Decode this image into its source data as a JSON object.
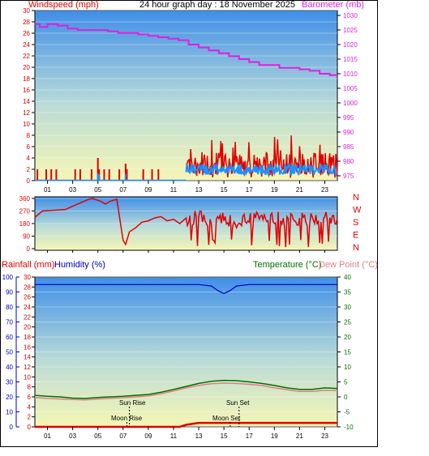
{
  "header": {
    "windspeed_label": "Windspeed (mph)",
    "title": "24 hour graph day : 18 November 2025",
    "barometer_label": "Barometer (mb)"
  },
  "lower_header": {
    "rainfall_label": "Rainfall (mm)",
    "humidity_label": "Humidity (%)",
    "temperature_label": "Temperature (°C)",
    "dewpoint_label": "Dew Point (°C)"
  },
  "annotations": {
    "sun_rise": "Sun Rise",
    "sun_set": "Sun Set",
    "moon_rise": "Moon Rise",
    "moon_set": "Moon Set"
  },
  "colors": {
    "wind": "#e00000",
    "gust_avg": "#1e90ff",
    "barometer": "#e020e0",
    "humidity": "#0000c0",
    "temperature": "#007000",
    "dewpoint": "#e08080",
    "rain": "#e00000",
    "sky_top": "#3f8fe8",
    "sky_bottom": "#f6f6b4"
  },
  "chart_data": [
    {
      "type": "line",
      "name": "wind-barometer",
      "x_ticks": [
        "01",
        "03",
        "05",
        "07",
        "09",
        "11",
        "13",
        "15",
        "17",
        "19",
        "21",
        "23"
      ],
      "left_axis": {
        "label": "Windspeed (mph)",
        "ticks": [
          0,
          2,
          4,
          6,
          8,
          10,
          12,
          14,
          16,
          18,
          20,
          22,
          24,
          26,
          28,
          30
        ],
        "ylim": [
          0,
          30
        ]
      },
      "right_axis": {
        "label": "Barometer (mb)",
        "ticks": [
          975,
          980,
          985,
          990,
          995,
          1000,
          1005,
          1010,
          1015,
          1020,
          1025,
          1030
        ],
        "ylim": [
          975,
          1030
        ]
      },
      "barometer": {
        "x": [
          0,
          0.4,
          1,
          1.8,
          2.6,
          3.4,
          4.2,
          5,
          5.8,
          6.6,
          7.4,
          8.2,
          9,
          9.8,
          10.6,
          11.4,
          12.2,
          13,
          13.8,
          14.6,
          15.4,
          16.2,
          17,
          17.8,
          18.6,
          19.4,
          20.2,
          21,
          21.8,
          22.6,
          23.4,
          24
        ],
        "y": [
          1027,
          1026,
          1027,
          1026.5,
          1025.5,
          1025,
          1025,
          1025,
          1024.5,
          1024,
          1024,
          1023.5,
          1023,
          1022.5,
          1022,
          1021.5,
          1020,
          1019,
          1018,
          1017,
          1016,
          1015,
          1014,
          1013,
          1013,
          1012,
          1012,
          1011.5,
          1011,
          1010,
          1009.5,
          1009.5
        ]
      },
      "wind_peaks": {
        "x": [
          0.2,
          0.9,
          1.3,
          1.7,
          3.2,
          3.6,
          4.5,
          5.0,
          5.1,
          5.5,
          5.9,
          6.7,
          7.2,
          7.3,
          8.6,
          9.3,
          9.8
        ],
        "y": [
          2,
          2,
          2,
          2,
          2,
          2,
          2,
          4,
          2,
          2,
          2,
          2,
          3,
          2,
          2,
          2,
          2
        ]
      },
      "active_wind": {
        "x_start": 12,
        "x_end": 24,
        "typical_max_mph": 5,
        "peak_mph": 8,
        "avg_band_mph": [
          1,
          3
        ]
      }
    },
    {
      "type": "line",
      "name": "wind-direction",
      "y_ticks": [
        0,
        90,
        180,
        270,
        360
      ],
      "compass_labels": [
        "N",
        "W",
        "S",
        "E",
        "N"
      ],
      "x": [
        0,
        0.6,
        1.4,
        2.4,
        3.4,
        4.3,
        4.6,
        5.2,
        5.6,
        6.0,
        6.5,
        7.0,
        7.2,
        7.5,
        8.0,
        8.5,
        9.0,
        9.5,
        10.0,
        10.5,
        11.0,
        11.5,
        12.0,
        12.5,
        13.0,
        13.5,
        14.0,
        14.5,
        15.0,
        15.5,
        16.0,
        16.5,
        17.0,
        17.5,
        18.0,
        18.5,
        19.0,
        19.5,
        20.0,
        20.5,
        21.0,
        21.5,
        22.0,
        22.5,
        23.0,
        23.5,
        24.0
      ],
      "y": [
        225,
        270,
        275,
        280,
        320,
        355,
        360,
        340,
        320,
        340,
        355,
        60,
        30,
        120,
        150,
        190,
        200,
        220,
        230,
        200,
        210,
        180,
        220,
        170,
        230,
        200,
        180,
        230,
        200,
        240,
        150,
        230,
        190,
        220,
        240,
        200,
        180,
        200,
        230,
        210,
        220,
        190,
        230,
        200,
        230,
        180,
        220
      ]
    },
    {
      "type": "line",
      "name": "temp-humidity-rain",
      "x_ticks": [
        "01",
        "03",
        "05",
        "07",
        "09",
        "11",
        "13",
        "15",
        "17",
        "19",
        "21",
        "23"
      ],
      "humidity_axis": {
        "ticks": [
          0,
          10,
          20,
          30,
          40,
          50,
          60,
          70,
          80,
          90,
          100
        ],
        "ylim": [
          0,
          100
        ]
      },
      "rain_axis": {
        "ticks": [
          0,
          2,
          4,
          6,
          8,
          10,
          12,
          14,
          16,
          18,
          20,
          22,
          24,
          26,
          28,
          30
        ],
        "ylim": [
          0,
          30
        ]
      },
      "temp_axis": {
        "ticks": [
          -10,
          -5,
          0,
          5,
          10,
          15,
          20,
          25,
          30,
          35,
          40
        ],
        "ylim": [
          -10,
          40
        ]
      },
      "humidity": {
        "x": [
          0,
          2,
          4,
          6,
          8,
          10,
          12,
          13,
          14,
          14.5,
          15,
          15.5,
          16,
          17,
          18,
          20,
          22,
          24
        ],
        "y": [
          95,
          95,
          95,
          95,
          95,
          95,
          95,
          95,
          94,
          91,
          89,
          91,
          94,
          95,
          95,
          95,
          95,
          95
        ]
      },
      "temperature": {
        "x": [
          0,
          1,
          2,
          3,
          4,
          5,
          6,
          7,
          8,
          9,
          10,
          11,
          12,
          13,
          14,
          15,
          16,
          17,
          18,
          19,
          20,
          21,
          22,
          23,
          24
        ],
        "y": [
          0.5,
          0.2,
          0,
          -0.4,
          -0.5,
          -0.2,
          0,
          0.2,
          0.5,
          0.8,
          1.5,
          2.5,
          3.5,
          4.5,
          5.2,
          5.5,
          5.4,
          5,
          4.5,
          3.8,
          3,
          2.5,
          2.5,
          3,
          2.8
        ]
      },
      "dew_point": {
        "x": [
          0,
          1,
          2,
          3,
          4,
          5,
          6,
          7,
          8,
          9,
          10,
          11,
          12,
          13,
          14,
          15,
          16,
          17,
          18,
          19,
          20,
          21,
          22,
          23,
          24
        ],
        "y": [
          -0.2,
          -0.5,
          -0.7,
          -0.9,
          -1,
          -0.7,
          -0.5,
          -0.3,
          0,
          0.3,
          1,
          2,
          3,
          3.8,
          4.4,
          4.6,
          4.5,
          4.2,
          3.8,
          3,
          2.4,
          1.8,
          1.8,
          2.2,
          2.1
        ]
      },
      "rain": {
        "x": [
          0,
          11.5,
          12,
          13,
          24
        ],
        "y": [
          0,
          0,
          0.4,
          0.8,
          0.8
        ]
      },
      "events": {
        "sun_rise_x": 7.5,
        "sun_set_x": 16.2,
        "moon_rise_x": 7.3,
        "moon_set_x": 15.5
      }
    }
  ]
}
